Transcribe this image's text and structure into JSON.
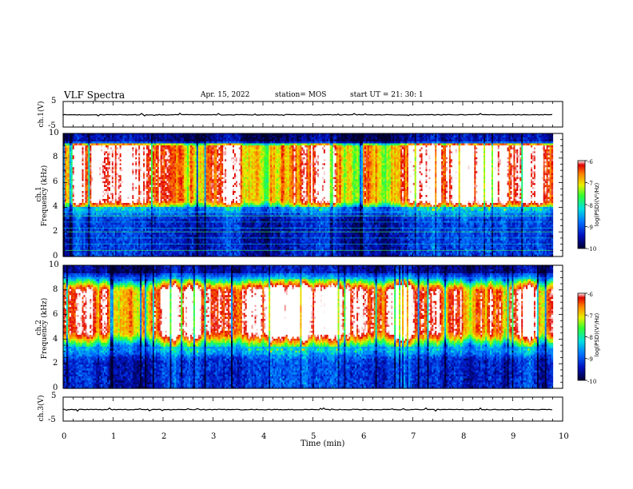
{
  "header": {
    "title": "VLF Spectra",
    "date": "Apr. 15, 2022",
    "station": "station= MOS",
    "start": "start  UT  =   21: 30: 1"
  },
  "chart_data": [
    {
      "type": "line",
      "panel": "ch1-waveform",
      "ylabel": "ch.1(V)",
      "ylim": [
        -5,
        5
      ],
      "yticks": [
        "5",
        "-5"
      ],
      "x_domain": [
        0,
        10
      ],
      "trace_level": -0.2,
      "color": "#000000"
    },
    {
      "type": "heatmap",
      "panel": "ch1-spectrogram",
      "ylabel_top": "ch.1",
      "ylabel": "Frequency (kHz)",
      "ylim": [
        0,
        10
      ],
      "yticks": [
        "0",
        "2",
        "4",
        "6",
        "8",
        "10"
      ],
      "x_domain": [
        0,
        9.8
      ],
      "band_low_khz": 4.0,
      "band_high_khz": 9.3,
      "band_peak_low_khz": 4.6,
      "band_peak_high_khz": 9.0,
      "colorbar": {
        "label": "log(PSD)(V²/Hz)",
        "range": [
          -10,
          -6
        ],
        "ticks": [
          "-6",
          "-7",
          "-8",
          "-9",
          "-10"
        ]
      }
    },
    {
      "type": "heatmap",
      "panel": "ch2-spectrogram",
      "ylabel_top": "ch.2",
      "ylabel": "Frequency (kHz)",
      "ylim": [
        0,
        10
      ],
      "yticks": [
        "0",
        "2",
        "4",
        "6",
        "8",
        "10"
      ],
      "x_domain": [
        0,
        9.8
      ],
      "band_low_khz": 3.3,
      "band_high_khz": 9.4,
      "band_peak_low_khz": 4.7,
      "band_peak_high_khz": 7.8,
      "colorbar": {
        "label": "log(PSD)(V²/Hz)",
        "range": [
          -10,
          -6
        ],
        "ticks": [
          "-6",
          "-7",
          "-8",
          "-9",
          "-10"
        ]
      }
    },
    {
      "type": "line",
      "panel": "ch3-waveform",
      "ylabel": "ch.3(V)",
      "ylim": [
        -5,
        5
      ],
      "yticks": [
        "5",
        "-5"
      ],
      "x_domain": [
        0,
        10
      ],
      "trace_level": -0.2,
      "color": "#000000"
    }
  ],
  "xaxis": {
    "label": "Time (min)",
    "range": [
      0,
      10
    ],
    "ticks": [
      "0",
      "1",
      "2",
      "3",
      "4",
      "5",
      "6",
      "7",
      "8",
      "9",
      "10"
    ]
  },
  "colors": {
    "low": "#000060",
    "mid_low": "#0050ff",
    "mid": "#00e0e0",
    "mid_high": "#40ff20",
    "high_mid": "#ffd000",
    "high": "#e00000"
  }
}
